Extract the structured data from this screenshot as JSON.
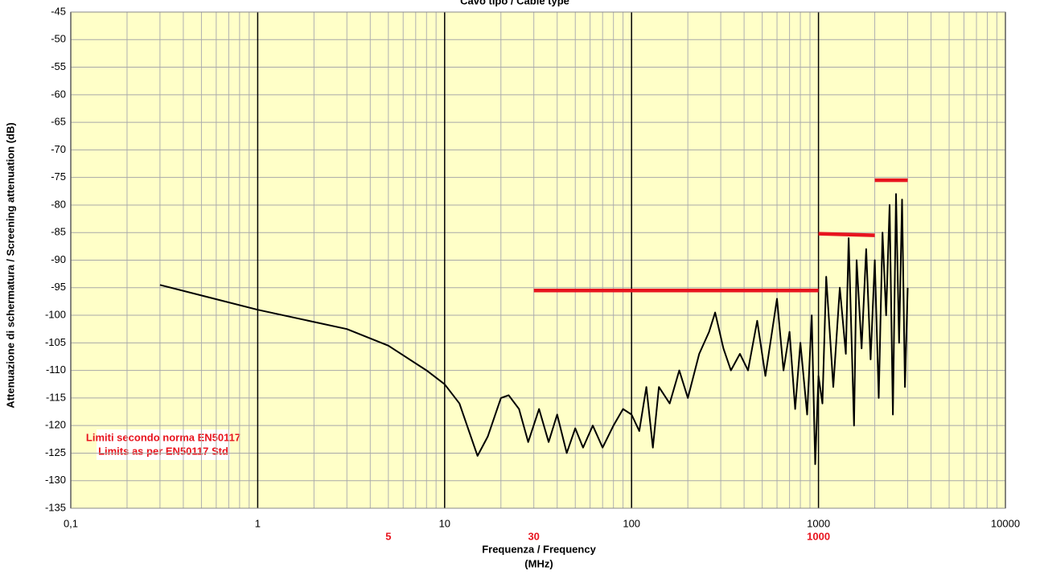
{
  "chart_data": {
    "type": "line",
    "title": "Cavo tipo / Cable type",
    "x_label": "Frequenza / Frequency",
    "x_unit": "(MHz)",
    "y_label": "Attenuazione di schermatura / Screening attenuation (dB)",
    "log_x": true,
    "grid": true,
    "xlim": [
      0.1,
      10000
    ],
    "xticks": [
      {
        "value": 0.1,
        "label": "0,1"
      },
      1,
      10,
      100,
      1000,
      10000
    ],
    "ylim": [
      -135,
      -45
    ],
    "yticks": [
      -135,
      -130,
      -125,
      -120,
      -115,
      -110,
      -105,
      -100,
      -95,
      -90,
      -85,
      -80,
      -75,
      -70,
      -65,
      -60,
      -55,
      -50,
      -45
    ],
    "freq_marks": [
      5,
      30,
      1000
    ],
    "limits_note": [
      "Limiti secondo norma EN50117",
      "Limits as per EN50117 Std"
    ],
    "series": [
      {
        "color": "#000000",
        "x": [
          0.3,
          1,
          3,
          5,
          8,
          10,
          12,
          15,
          17,
          20,
          22,
          25,
          28,
          32,
          36,
          40,
          45,
          50,
          55,
          62,
          70,
          80,
          90,
          100,
          110,
          120,
          130,
          140,
          160,
          180,
          200,
          230,
          260,
          280,
          310,
          340,
          380,
          420,
          470,
          520,
          600,
          650,
          700,
          750,
          800,
          870,
          920,
          960,
          1000,
          1050,
          1100,
          1200,
          1300,
          1400,
          1450,
          1550,
          1600,
          1700,
          1800,
          1900,
          2000,
          2100,
          2200,
          2300,
          2400,
          2500,
          2600,
          2700,
          2800,
          2900,
          3000
        ],
        "values": [
          -94.5,
          -99,
          -102.5,
          -105.5,
          -110,
          -112.5,
          -116,
          -125.5,
          -122,
          -115,
          -114.5,
          -117,
          -123,
          -117,
          -123,
          -118,
          -125,
          -120.5,
          -124,
          -120,
          -124,
          -120,
          -117,
          -118,
          -121,
          -113,
          -124,
          -113,
          -116,
          -110,
          -115,
          -107,
          -103,
          -99.5,
          -106,
          -110,
          -107,
          -110,
          -101,
          -111,
          -97,
          -110,
          -103,
          -117,
          -105,
          -118,
          -100,
          -127,
          -111,
          -116,
          -93,
          -113,
          -95,
          -107,
          -86,
          -120,
          -90,
          -106,
          -88,
          -108,
          -90,
          -115,
          -85,
          -100,
          -80,
          -118,
          -78,
          -105,
          -79,
          -113,
          -95
        ]
      },
      {
        "color": "#e8141e",
        "x": [
          30,
          1000
        ],
        "values": [
          -95.5,
          -95.5
        ]
      },
      {
        "color": "#e8141e",
        "x": [
          1000,
          2000
        ],
        "values": [
          -85.2,
          -85.5
        ]
      },
      {
        "color": "#e8141e",
        "x": [
          2000,
          3000
        ],
        "values": [
          -75.5,
          -75.5
        ]
      }
    ]
  }
}
